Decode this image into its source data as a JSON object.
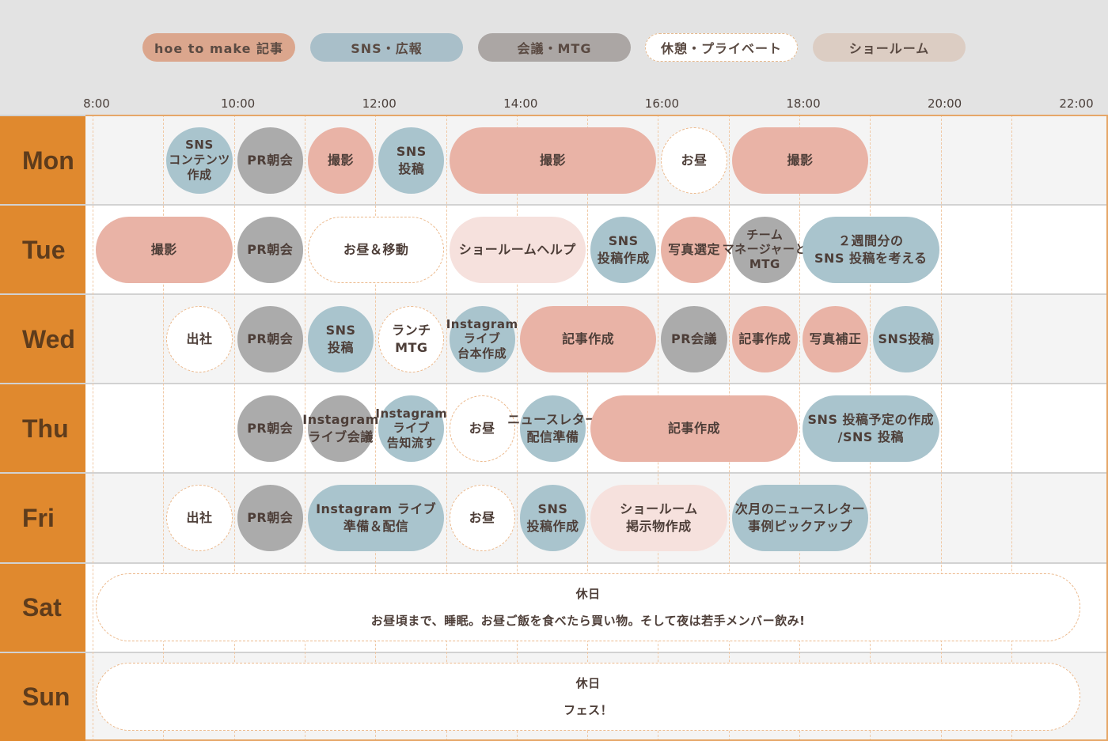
{
  "legend": [
    {
      "key": "article",
      "label": "hoe to make 記事",
      "color": "#dba68d"
    },
    {
      "key": "sns",
      "label": "SNS・広報",
      "color": "#a9bfc9"
    },
    {
      "key": "meeting",
      "label": "会議・MTG",
      "color": "#aba6a4"
    },
    {
      "key": "break",
      "label": "休憩・プライベート",
      "color": "#ffffff"
    },
    {
      "key": "showroom",
      "label": "ショールーム",
      "color": "#dccdc3"
    }
  ],
  "time_ticks": [
    "8:00",
    "10:00",
    "12:00",
    "14:00",
    "16:00",
    "18:00",
    "20:00",
    "22:00"
  ],
  "days": [
    {
      "label": "Mon",
      "blocks": [
        {
          "start": "9:00",
          "end": "10:00",
          "category": "sns",
          "lines": [
            "SNS",
            "コンテンツ",
            "作成"
          ]
        },
        {
          "start": "10:00",
          "end": "11:00",
          "category": "meeting",
          "lines": [
            "PR朝会"
          ]
        },
        {
          "start": "11:00",
          "end": "12:00",
          "category": "article",
          "lines": [
            "撮影"
          ]
        },
        {
          "start": "12:00",
          "end": "13:00",
          "category": "sns",
          "lines": [
            "SNS",
            "投稿"
          ]
        },
        {
          "start": "13:00",
          "end": "16:00",
          "category": "article",
          "lines": [
            "撮影"
          ]
        },
        {
          "start": "16:00",
          "end": "17:00",
          "category": "break",
          "lines": [
            "お昼"
          ]
        },
        {
          "start": "17:00",
          "end": "19:00",
          "category": "article",
          "lines": [
            "撮影"
          ]
        }
      ]
    },
    {
      "label": "Tue",
      "blocks": [
        {
          "start": "8:00",
          "end": "10:00",
          "category": "article",
          "lines": [
            "撮影"
          ]
        },
        {
          "start": "10:00",
          "end": "11:00",
          "category": "meeting",
          "lines": [
            "PR朝会"
          ]
        },
        {
          "start": "11:00",
          "end": "13:00",
          "category": "break",
          "lines": [
            "お昼＆移動"
          ]
        },
        {
          "start": "13:00",
          "end": "15:00",
          "category": "showroom",
          "lines": [
            "ショールームヘルプ"
          ]
        },
        {
          "start": "15:00",
          "end": "16:00",
          "category": "sns",
          "lines": [
            "SNS",
            "投稿作成"
          ]
        },
        {
          "start": "16:00",
          "end": "17:00",
          "category": "article",
          "lines": [
            "写真選定"
          ]
        },
        {
          "start": "17:00",
          "end": "18:00",
          "category": "meeting",
          "lines": [
            "チーム",
            "マネージャーと",
            "MTG"
          ]
        },
        {
          "start": "18:00",
          "end": "20:00",
          "category": "sns",
          "lines": [
            "２週間分の",
            "SNS 投稿を考える"
          ]
        }
      ]
    },
    {
      "label": "Wed",
      "blocks": [
        {
          "start": "9:00",
          "end": "10:00",
          "category": "break",
          "lines": [
            "出社"
          ]
        },
        {
          "start": "10:00",
          "end": "11:00",
          "category": "meeting",
          "lines": [
            "PR朝会"
          ]
        },
        {
          "start": "11:00",
          "end": "12:00",
          "category": "sns",
          "lines": [
            "SNS",
            "投稿"
          ]
        },
        {
          "start": "12:00",
          "end": "13:00",
          "category": "break",
          "lines": [
            "ランチ",
            "MTG"
          ]
        },
        {
          "start": "13:00",
          "end": "14:00",
          "category": "sns",
          "lines": [
            "Instagram",
            "ライブ",
            "台本作成"
          ]
        },
        {
          "start": "14:00",
          "end": "16:00",
          "category": "article",
          "lines": [
            "記事作成"
          ]
        },
        {
          "start": "16:00",
          "end": "17:00",
          "category": "meeting",
          "lines": [
            "PR会議"
          ]
        },
        {
          "start": "17:00",
          "end": "18:00",
          "category": "article",
          "lines": [
            "記事作成"
          ]
        },
        {
          "start": "18:00",
          "end": "19:00",
          "category": "article",
          "lines": [
            "写真補正"
          ]
        },
        {
          "start": "19:00",
          "end": "20:00",
          "category": "sns",
          "lines": [
            "SNS投稿"
          ]
        }
      ]
    },
    {
      "label": "Thu",
      "blocks": [
        {
          "start": "10:00",
          "end": "11:00",
          "category": "meeting",
          "lines": [
            "PR朝会"
          ]
        },
        {
          "start": "11:00",
          "end": "12:00",
          "category": "meeting",
          "lines": [
            "Instagram",
            "ライブ会議"
          ]
        },
        {
          "start": "12:00",
          "end": "13:00",
          "category": "sns",
          "lines": [
            "Instagram",
            "ライブ",
            "告知流す"
          ]
        },
        {
          "start": "13:00",
          "end": "14:00",
          "category": "break",
          "lines": [
            "お昼"
          ]
        },
        {
          "start": "14:00",
          "end": "15:00",
          "category": "sns",
          "lines": [
            "ニュースレター",
            "配信準備"
          ]
        },
        {
          "start": "15:00",
          "end": "18:00",
          "category": "article",
          "lines": [
            "記事作成"
          ]
        },
        {
          "start": "18:00",
          "end": "20:00",
          "category": "sns",
          "lines": [
            "SNS 投稿予定の作成",
            "/SNS 投稿"
          ]
        }
      ]
    },
    {
      "label": "Fri",
      "blocks": [
        {
          "start": "9:00",
          "end": "10:00",
          "category": "break",
          "lines": [
            "出社"
          ]
        },
        {
          "start": "10:00",
          "end": "11:00",
          "category": "meeting",
          "lines": [
            "PR朝会"
          ]
        },
        {
          "start": "11:00",
          "end": "13:00",
          "category": "sns",
          "lines": [
            "Instagram ライブ",
            "準備＆配信"
          ]
        },
        {
          "start": "13:00",
          "end": "14:00",
          "category": "break",
          "lines": [
            "お昼"
          ]
        },
        {
          "start": "14:00",
          "end": "15:00",
          "category": "sns",
          "lines": [
            "SNS",
            "投稿作成"
          ]
        },
        {
          "start": "15:00",
          "end": "17:00",
          "category": "showroom",
          "lines": [
            "ショールーム",
            "掲示物作成"
          ]
        },
        {
          "start": "17:00",
          "end": "19:00",
          "category": "sns",
          "lines": [
            "次月のニュースレター",
            "事例ピックアップ"
          ]
        }
      ]
    },
    {
      "label": "Sat",
      "blocks": [
        {
          "start": "8:00",
          "end": "22:00",
          "category": "break",
          "lines": [
            "休日",
            "お昼頃まで、睡眠。お昼ご飯を食べたら買い物。そして夜は若手メンバー飲み!"
          ]
        }
      ]
    },
    {
      "label": "Sun",
      "blocks": [
        {
          "start": "8:00",
          "end": "22:00",
          "category": "break",
          "lines": [
            "休日",
            "フェス！"
          ]
        }
      ]
    }
  ]
}
